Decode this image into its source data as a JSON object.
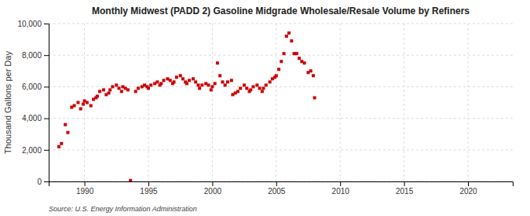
{
  "chart_data": {
    "type": "scatter",
    "title": "Monthly Midwest (PADD 2) Gasoline Midgrade Wholesale/Resale Volume by Refiners",
    "ylabel": "Thousand Gallons per Day",
    "annotations": [
      "Source: U.S. Energy Information Administration"
    ],
    "color": "#cc0000",
    "marker": "square",
    "grid": true,
    "xlim": [
      1987.2,
      2023.5
    ],
    "xticks": [
      1990,
      1995,
      2000,
      2005,
      2010,
      2015,
      2020
    ],
    "ylim": [
      0,
      10000
    ],
    "yticks": [
      0,
      {
        "value": 2000,
        "label": "2,000"
      },
      {
        "value": 4000,
        "label": "4,000"
      },
      {
        "value": 6000,
        "label": "6,000"
      },
      {
        "value": 8000,
        "label": "8,000"
      },
      {
        "value": 10000,
        "label": "10,000"
      }
    ],
    "x": [
      1988.0,
      1988.2,
      1988.5,
      1988.7,
      1989.0,
      1989.2,
      1989.5,
      1989.7,
      1989.9,
      1990.0,
      1990.2,
      1990.5,
      1990.7,
      1990.9,
      1991.0,
      1991.2,
      1991.5,
      1991.7,
      1991.9,
      1992.0,
      1992.2,
      1992.5,
      1992.7,
      1992.9,
      1993.0,
      1993.2,
      1993.4,
      1993.6,
      1994.0,
      1994.2,
      1994.5,
      1994.7,
      1994.9,
      1995.0,
      1995.2,
      1995.5,
      1995.7,
      1995.9,
      1996.0,
      1996.2,
      1996.5,
      1996.7,
      1996.9,
      1997.0,
      1997.2,
      1997.5,
      1997.7,
      1997.9,
      1998.0,
      1998.2,
      1998.5,
      1998.7,
      1998.9,
      1999.0,
      1999.2,
      1999.5,
      1999.7,
      1999.9,
      2000.0,
      2000.2,
      2000.4,
      2000.6,
      2000.8,
      2001.0,
      2001.2,
      2001.5,
      2001.6,
      2001.8,
      2002.0,
      2002.2,
      2002.5,
      2002.7,
      2002.9,
      2003.0,
      2003.2,
      2003.5,
      2003.7,
      2003.9,
      2004.0,
      2004.2,
      2004.5,
      2004.7,
      2004.9,
      2005.0,
      2005.2,
      2005.4,
      2005.6,
      2005.8,
      2006.0,
      2006.2,
      2006.4,
      2006.6,
      2006.8,
      2007.0,
      2007.2,
      2007.5,
      2007.7,
      2007.9,
      2008.0
    ],
    "values": [
      2200,
      2400,
      3600,
      3100,
      4700,
      4800,
      5000,
      4600,
      4900,
      5100,
      5000,
      4800,
      5200,
      5300,
      5400,
      5700,
      5800,
      5500,
      5600,
      5800,
      6000,
      6100,
      5900,
      5700,
      6000,
      5900,
      5800,
      60,
      5700,
      5900,
      6000,
      6100,
      6000,
      5900,
      6100,
      6200,
      6300,
      6100,
      6200,
      6400,
      6500,
      6400,
      6200,
      6300,
      6600,
      6700,
      6500,
      6300,
      6200,
      6400,
      6500,
      6300,
      6100,
      5900,
      6100,
      6200,
      6100,
      5800,
      6000,
      6200,
      7500,
      6700,
      6300,
      6100,
      6300,
      6400,
      5500,
      5600,
      5700,
      5900,
      6100,
      5900,
      5700,
      5800,
      6000,
      6100,
      5900,
      5700,
      5900,
      6100,
      6300,
      6500,
      6600,
      6700,
      7100,
      7600,
      8100,
      9200,
      9400,
      8900,
      8100,
      8100,
      7800,
      7600,
      7500,
      6900,
      7000,
      6700,
      5300
    ]
  }
}
